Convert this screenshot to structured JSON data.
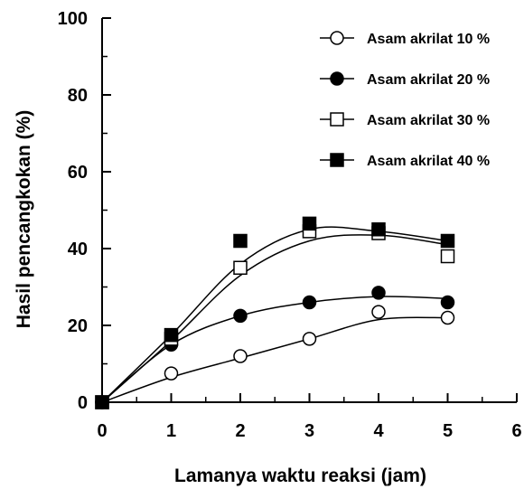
{
  "chart_data": {
    "type": "scatter",
    "xlabel": "Lamanya waktu reaksi (jam)",
    "ylabel": "Hasil pencangkokan (%)",
    "xlim": [
      0,
      6
    ],
    "ylim": [
      0,
      100
    ],
    "xticks": [
      0,
      1,
      2,
      3,
      4,
      5,
      6
    ],
    "yticks": [
      0,
      20,
      40,
      60,
      80,
      100
    ],
    "grid": false,
    "legend_position": "top-right",
    "series": [
      {
        "name": "Asam akrilat 10 %",
        "marker": "circle-open",
        "x": [
          0,
          1,
          2,
          3,
          4,
          5
        ],
        "y": [
          0,
          7.5,
          12,
          16.5,
          23.5,
          22
        ],
        "curve": [
          [
            0,
            0
          ],
          [
            1,
            6.5
          ],
          [
            2,
            11.5
          ],
          [
            3,
            16.5
          ],
          [
            4,
            21.5
          ],
          [
            5,
            22
          ]
        ]
      },
      {
        "name": "Asam akrilat 20 %",
        "marker": "circle-filled",
        "x": [
          0,
          1,
          2,
          3,
          4,
          5
        ],
        "y": [
          0,
          15,
          22.5,
          26,
          28.5,
          26
        ],
        "curve": [
          [
            0,
            0
          ],
          [
            1,
            15
          ],
          [
            2,
            22.5
          ],
          [
            3,
            26
          ],
          [
            4,
            27.5
          ],
          [
            5,
            27
          ]
        ]
      },
      {
        "name": "Asam akrilat 30 %",
        "marker": "square-open",
        "x": [
          0,
          1,
          2,
          3,
          4,
          5
        ],
        "y": [
          0,
          16.5,
          35,
          44.5,
          44,
          38
        ],
        "curve": [
          [
            0,
            0
          ],
          [
            1,
            16
          ],
          [
            2,
            33
          ],
          [
            3,
            42
          ],
          [
            4,
            43.5
          ],
          [
            5,
            41
          ]
        ]
      },
      {
        "name": "Asam akrilat 40 %",
        "marker": "square-filled",
        "x": [
          0,
          1,
          2,
          3,
          4,
          5
        ],
        "y": [
          0,
          17.5,
          42,
          46.5,
          45,
          42
        ],
        "curve": [
          [
            0,
            0
          ],
          [
            1,
            17.5
          ],
          [
            2,
            36
          ],
          [
            3,
            45
          ],
          [
            4,
            44.5
          ],
          [
            5,
            42
          ]
        ]
      }
    ]
  }
}
